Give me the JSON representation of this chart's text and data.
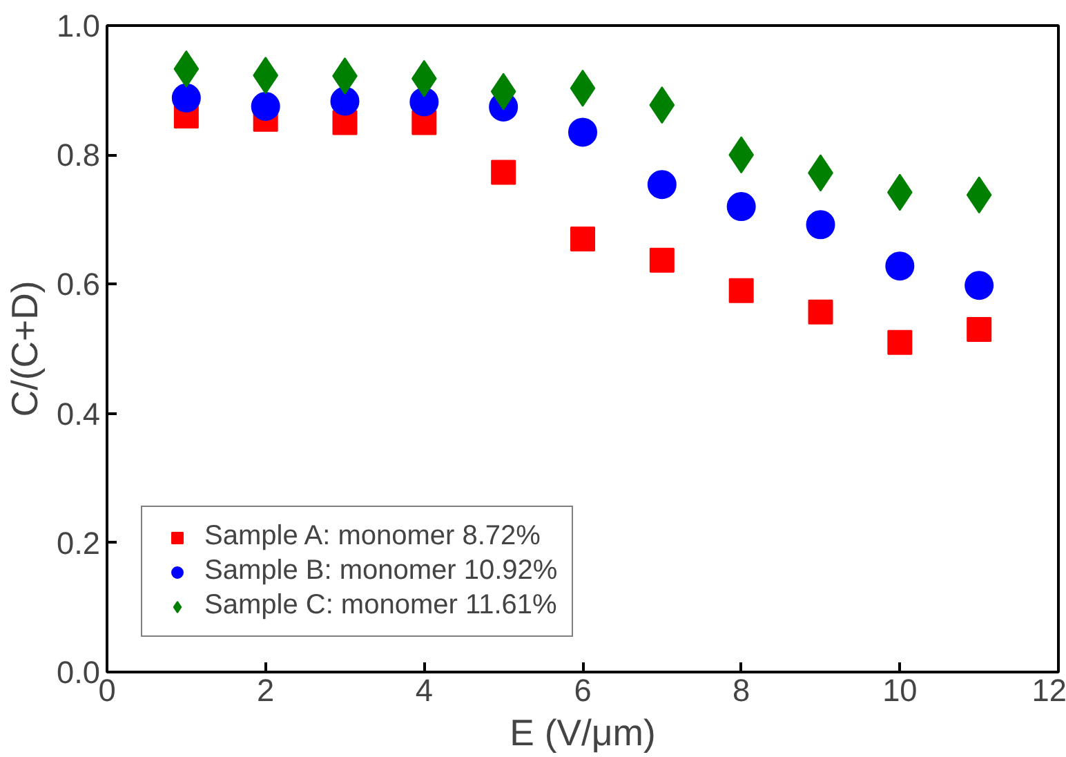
{
  "chart_data": {
    "type": "scatter",
    "xlabel": "E (V/μm)",
    "ylabel": "C/(C+D)",
    "x": [
      1,
      2,
      3,
      4,
      5,
      6,
      7,
      8,
      9,
      10,
      11
    ],
    "xlim": [
      0,
      12
    ],
    "xticks": [
      0,
      2,
      4,
      6,
      8,
      10,
      12
    ],
    "ylim": [
      0,
      1
    ],
    "yticks": [
      {
        "value": 0,
        "label": "0.0"
      },
      0.2,
      0.4,
      0.6,
      0.8,
      {
        "value": 1,
        "label": "1.0"
      }
    ],
    "grid": false,
    "legend": "bottom left",
    "series": [
      {
        "name": "Sample A: monomer 8.72%",
        "color": "#ff0000",
        "marker": "square",
        "values": [
          0.86,
          0.855,
          0.85,
          0.85,
          0.773,
          0.67,
          0.637,
          0.59,
          0.557,
          0.51,
          0.53
        ]
      },
      {
        "name": "Sample B: monomer 10.92%",
        "color": "#0000ff",
        "marker": "circle",
        "values": [
          0.888,
          0.875,
          0.883,
          0.882,
          0.874,
          0.835,
          0.754,
          0.72,
          0.692,
          0.628,
          0.598
        ]
      },
      {
        "name": "Sample C: monomer 11.61%",
        "color": "#008000",
        "marker": "diamond",
        "values": [
          0.933,
          0.923,
          0.922,
          0.918,
          0.898,
          0.903,
          0.877,
          0.8,
          0.772,
          0.742,
          0.738
        ]
      }
    ]
  }
}
